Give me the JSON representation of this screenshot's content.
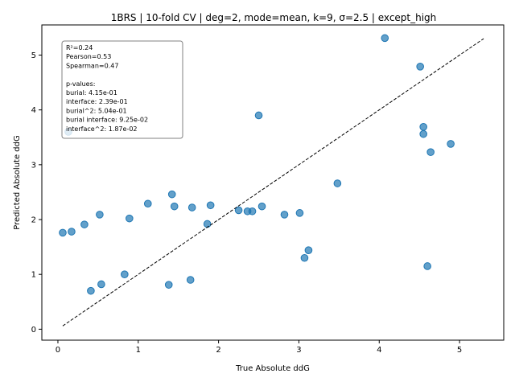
{
  "chart_data": {
    "type": "scatter",
    "title": "1BRS | 10-fold CV | deg=2, mode=mean, k=9, σ=2.5 | except_high",
    "xlabel": "True Absolute ddG",
    "ylabel": "Predicted Absolute ddG",
    "xlim": [
      -0.2,
      5.55
    ],
    "ylim": [
      -0.2,
      5.55
    ],
    "xticks": [
      0,
      1,
      2,
      3,
      4,
      5
    ],
    "yticks": [
      0,
      1,
      2,
      3,
      4,
      5
    ],
    "point_color": "#1f77b4",
    "reference_line": {
      "x": [
        0.06,
        5.3
      ],
      "y": [
        0.06,
        5.3
      ],
      "style": "dashed",
      "color": "#000000"
    },
    "points": [
      {
        "x": 0.06,
        "y": 1.76
      },
      {
        "x": 0.17,
        "y": 1.78
      },
      {
        "x": 0.13,
        "y": 3.6
      },
      {
        "x": 0.33,
        "y": 1.91
      },
      {
        "x": 0.41,
        "y": 0.7
      },
      {
        "x": 0.52,
        "y": 2.09
      },
      {
        "x": 0.54,
        "y": 0.82
      },
      {
        "x": 0.83,
        "y": 1.0
      },
      {
        "x": 0.89,
        "y": 2.02
      },
      {
        "x": 1.12,
        "y": 2.29
      },
      {
        "x": 1.38,
        "y": 0.81
      },
      {
        "x": 1.42,
        "y": 2.46
      },
      {
        "x": 1.45,
        "y": 2.24
      },
      {
        "x": 1.65,
        "y": 0.9
      },
      {
        "x": 1.67,
        "y": 2.22
      },
      {
        "x": 1.86,
        "y": 1.92
      },
      {
        "x": 1.9,
        "y": 2.26
      },
      {
        "x": 2.25,
        "y": 2.17
      },
      {
        "x": 2.36,
        "y": 2.15
      },
      {
        "x": 2.42,
        "y": 2.15
      },
      {
        "x": 2.5,
        "y": 3.9
      },
      {
        "x": 2.54,
        "y": 2.24
      },
      {
        "x": 2.82,
        "y": 2.09
      },
      {
        "x": 3.01,
        "y": 2.12
      },
      {
        "x": 3.07,
        "y": 1.3
      },
      {
        "x": 3.12,
        "y": 1.44
      },
      {
        "x": 3.48,
        "y": 2.66
      },
      {
        "x": 4.07,
        "y": 5.31
      },
      {
        "x": 4.51,
        "y": 4.79
      },
      {
        "x": 4.55,
        "y": 3.69
      },
      {
        "x": 4.55,
        "y": 3.56
      },
      {
        "x": 4.6,
        "y": 1.15
      },
      {
        "x": 4.64,
        "y": 3.23
      },
      {
        "x": 4.89,
        "y": 3.38
      }
    ],
    "stats_box": {
      "location": "upper-left",
      "lines": [
        "R²=0.24",
        "Pearson=0.53",
        "Spearman=0.47",
        "",
        "p-values:",
        "burial: 4.15e-01",
        "interface: 2.39e-01",
        "burial^2: 5.04e-01",
        "burial interface: 9.25e-02",
        "interface^2: 1.87e-02"
      ]
    }
  }
}
